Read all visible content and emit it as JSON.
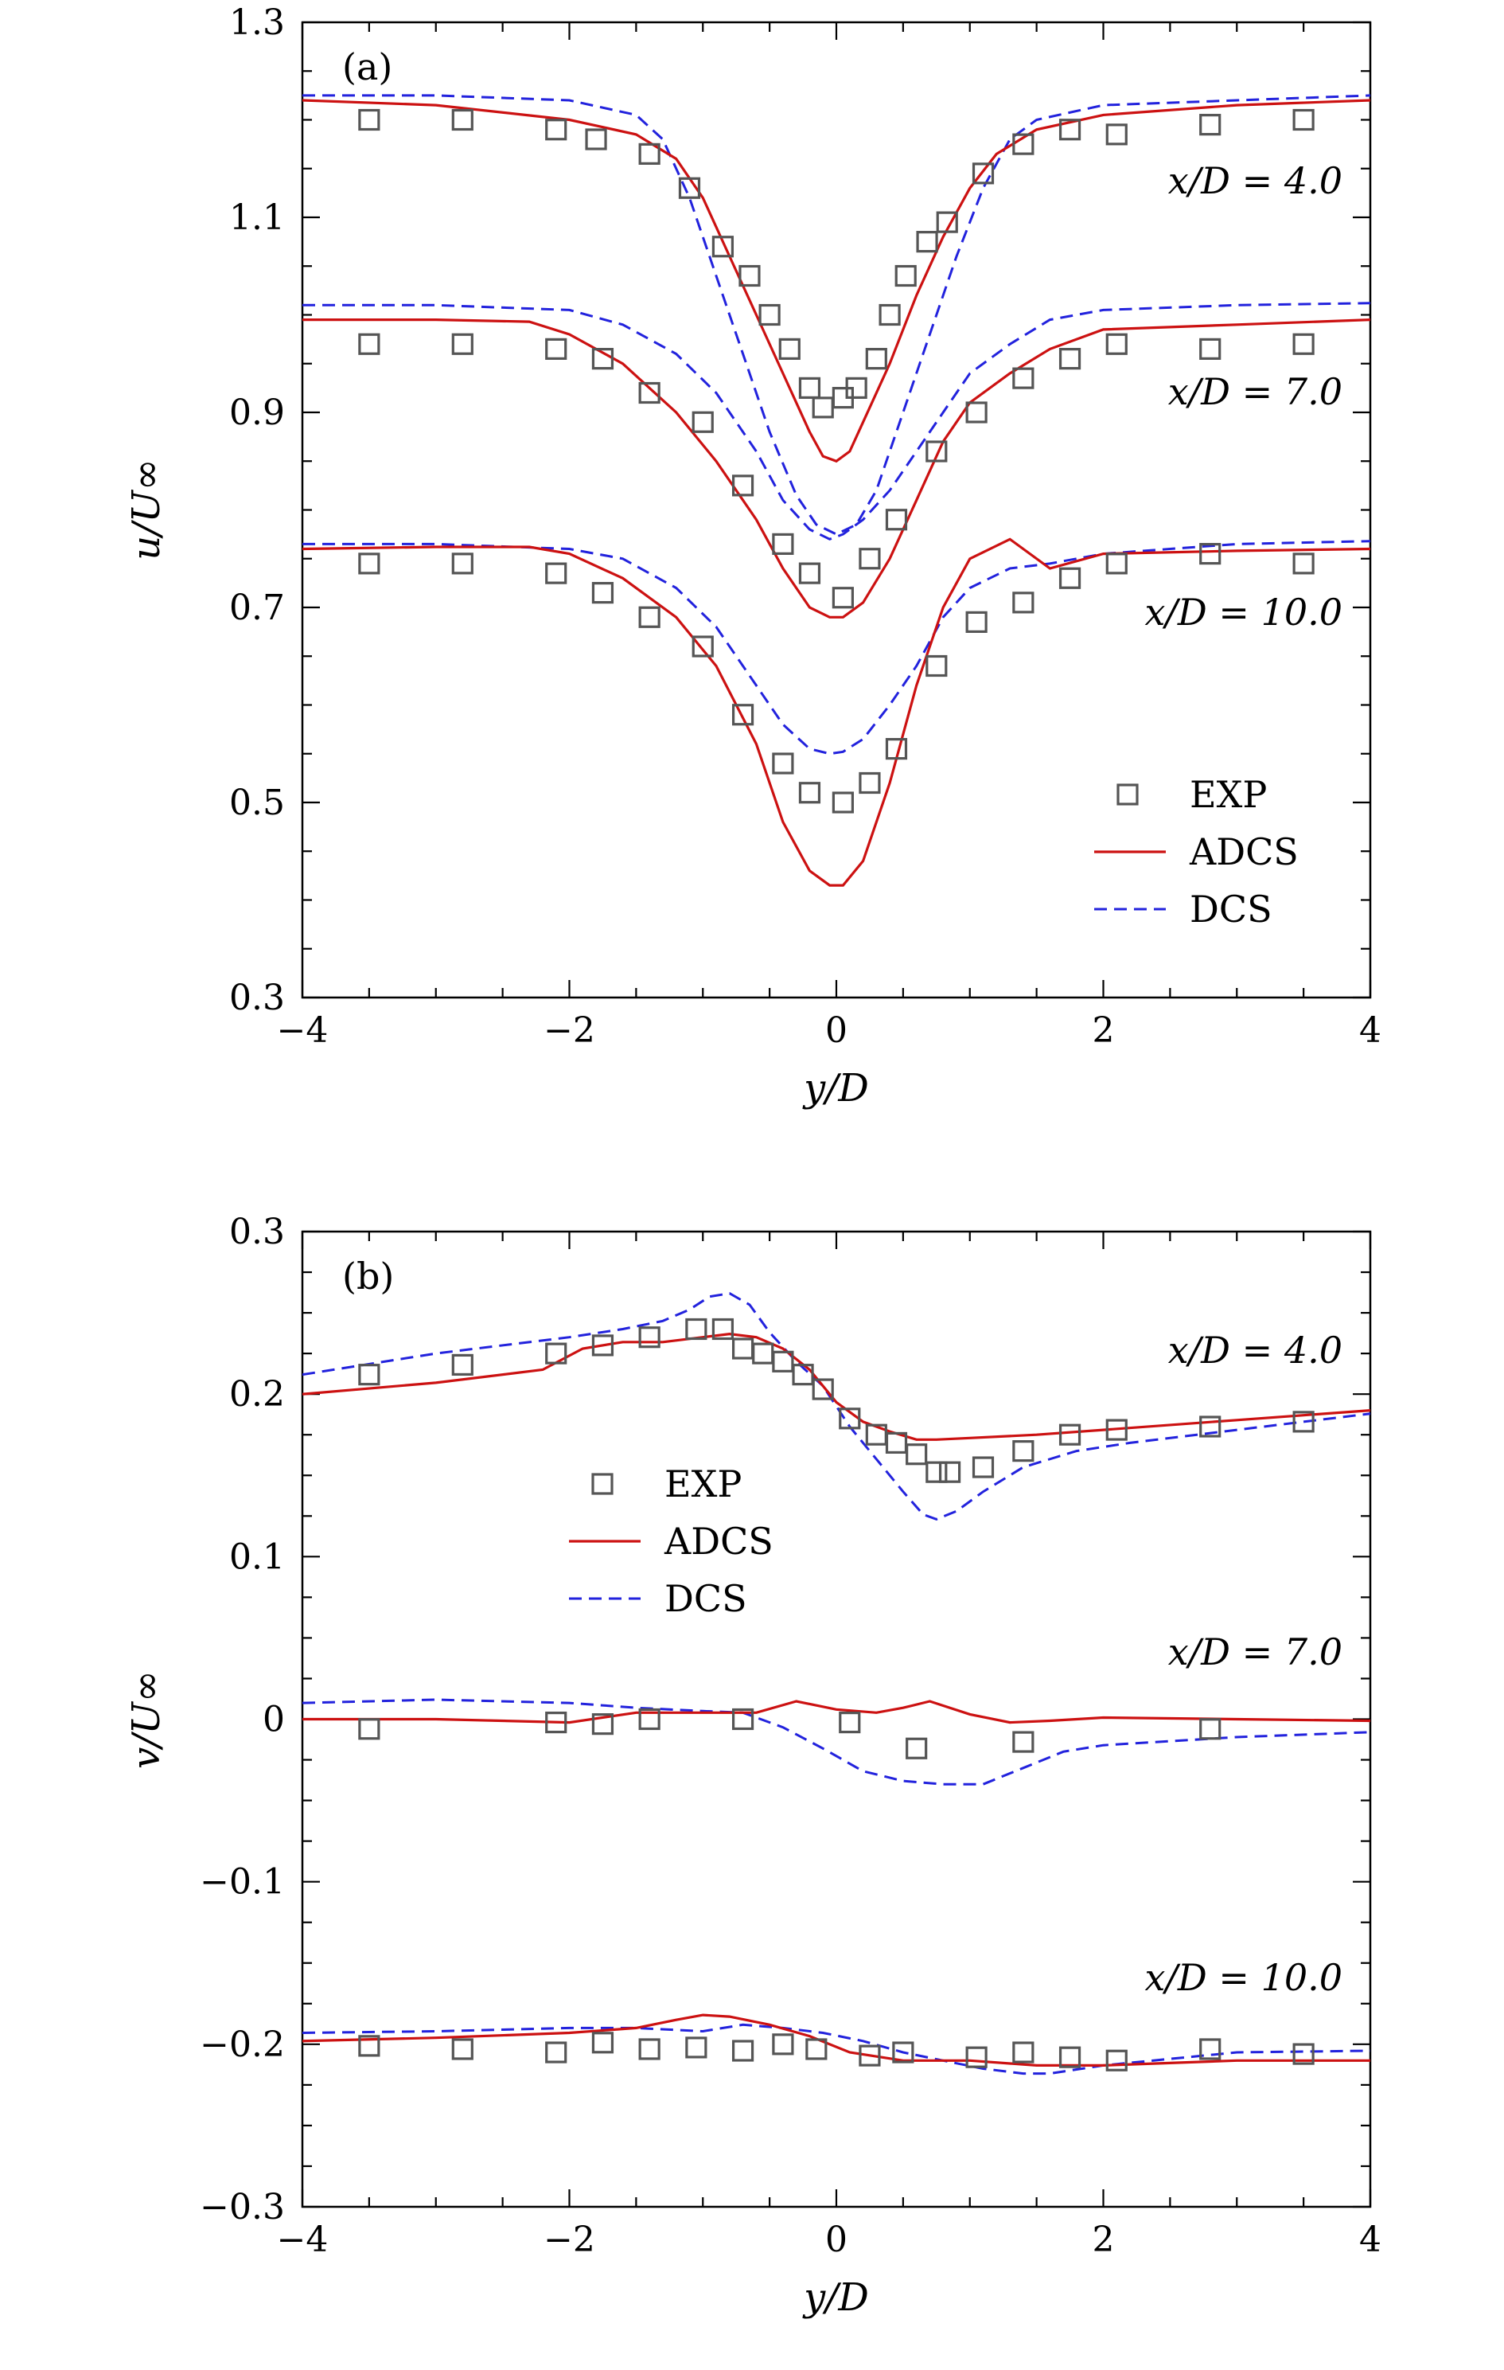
{
  "colors": {
    "exp": "#555555",
    "adcs": "#cc1111",
    "dcs": "#2222dd"
  },
  "chart_data": [
    {
      "type": "line",
      "panel_label": "(a)",
      "xlabel": "y/D",
      "ylabel": "u/U∞",
      "xlim": [
        -4,
        4
      ],
      "ylim": [
        0.3,
        1.3
      ],
      "xticks": [
        -4,
        -2,
        0,
        2,
        4
      ],
      "xtick_labels": [
        "−4",
        "−2",
        "0",
        "2",
        "4"
      ],
      "yticks": [
        0.3,
        0.5,
        0.7,
        0.9,
        1.1,
        1.3
      ],
      "ytick_labels": [
        "0.3",
        "0.5",
        "0.7",
        "0.9",
        "1.1",
        "1.3"
      ],
      "legend": {
        "placement": "lower-right",
        "entries": [
          "EXP",
          "ADCS",
          "DCS"
        ]
      },
      "annotations": [
        {
          "text": "x/D = 4.0",
          "x": 3.65,
          "y": 1.19
        },
        {
          "text": "x/D = 7.0",
          "x": 3.65,
          "y": 0.97
        },
        {
          "text": "x/D = 10.0",
          "x": 3.65,
          "y": 0.74
        }
      ],
      "groups": [
        {
          "label": "x/D = 4.0",
          "exp": {
            "x": [
              -3.5,
              -2.8,
              -2.1,
              -1.8,
              -1.4,
              -1.1,
              -0.85,
              -0.65,
              -0.5,
              -0.35,
              -0.2,
              -0.1,
              0.05,
              0.15,
              0.3,
              0.4,
              0.52,
              0.68,
              0.83,
              1.1,
              1.4,
              1.75,
              2.1,
              2.8,
              3.5
            ],
            "y": [
              1.2,
              1.2,
              1.19,
              1.18,
              1.165,
              1.13,
              1.07,
              1.04,
              1.0,
              0.965,
              0.925,
              0.905,
              0.915,
              0.925,
              0.955,
              1.0,
              1.04,
              1.075,
              1.095,
              1.145,
              1.175,
              1.19,
              1.185,
              1.195,
              1.2
            ]
          },
          "adcs": {
            "x": [
              -4,
              -3,
              -2,
              -1.5,
              -1.2,
              -1.0,
              -0.8,
              -0.6,
              -0.4,
              -0.2,
              -0.1,
              0,
              0.1,
              0.2,
              0.4,
              0.6,
              0.8,
              1.0,
              1.2,
              1.5,
              2,
              3,
              4
            ],
            "y": [
              1.22,
              1.215,
              1.2,
              1.185,
              1.16,
              1.12,
              1.06,
              1.0,
              0.94,
              0.88,
              0.855,
              0.85,
              0.86,
              0.89,
              0.95,
              1.02,
              1.08,
              1.13,
              1.165,
              1.19,
              1.205,
              1.215,
              1.22
            ]
          },
          "dcs": {
            "x": [
              -4,
              -3,
              -2,
              -1.5,
              -1.3,
              -1.1,
              -0.9,
              -0.7,
              -0.5,
              -0.3,
              -0.15,
              0,
              0.15,
              0.3,
              0.5,
              0.7,
              0.9,
              1.1,
              1.3,
              1.5,
              2,
              3,
              4
            ],
            "y": [
              1.225,
              1.225,
              1.22,
              1.205,
              1.18,
              1.12,
              1.04,
              0.96,
              0.88,
              0.815,
              0.785,
              0.775,
              0.785,
              0.82,
              0.9,
              0.98,
              1.06,
              1.13,
              1.18,
              1.2,
              1.215,
              1.22,
              1.225
            ]
          }
        },
        {
          "label": "x/D = 7.0",
          "exp": {
            "x": [
              -3.5,
              -2.8,
              -2.1,
              -1.75,
              -1.4,
              -1.0,
              -0.7,
              -0.4,
              -0.2,
              0.05,
              0.25,
              0.45,
              0.75,
              1.05,
              1.4,
              1.75,
              2.1,
              2.8,
              3.5
            ],
            "y": [
              0.97,
              0.97,
              0.965,
              0.955,
              0.92,
              0.89,
              0.825,
              0.765,
              0.735,
              0.71,
              0.75,
              0.79,
              0.86,
              0.9,
              0.935,
              0.955,
              0.97,
              0.965,
              0.97
            ]
          },
          "adcs": {
            "x": [
              -4,
              -3,
              -2.3,
              -2,
              -1.6,
              -1.2,
              -0.9,
              -0.6,
              -0.4,
              -0.2,
              -0.05,
              0.05,
              0.2,
              0.4,
              0.6,
              0.8,
              1.0,
              1.3,
              1.6,
              2,
              3,
              4
            ],
            "y": [
              0.995,
              0.995,
              0.993,
              0.98,
              0.95,
              0.9,
              0.85,
              0.79,
              0.74,
              0.7,
              0.69,
              0.69,
              0.705,
              0.75,
              0.81,
              0.87,
              0.91,
              0.94,
              0.965,
              0.985,
              0.99,
              0.995
            ]
          },
          "dcs": {
            "x": [
              -4,
              -3,
              -2,
              -1.6,
              -1.2,
              -0.9,
              -0.6,
              -0.4,
              -0.2,
              -0.05,
              0.05,
              0.2,
              0.4,
              0.6,
              0.8,
              1.0,
              1.3,
              1.6,
              2,
              3,
              4
            ],
            "y": [
              1.01,
              1.01,
              1.005,
              0.99,
              0.96,
              0.92,
              0.86,
              0.81,
              0.78,
              0.77,
              0.775,
              0.79,
              0.82,
              0.86,
              0.9,
              0.94,
              0.97,
              0.995,
              1.005,
              1.01,
              1.012
            ]
          }
        },
        {
          "label": "x/D = 10.0",
          "exp": {
            "x": [
              -3.5,
              -2.8,
              -2.1,
              -1.75,
              -1.4,
              -1.0,
              -0.7,
              -0.4,
              -0.2,
              0.05,
              0.25,
              0.45,
              0.75,
              1.05,
              1.4,
              1.75,
              2.1,
              2.8,
              3.5
            ],
            "y": [
              0.745,
              0.745,
              0.735,
              0.715,
              0.69,
              0.66,
              0.59,
              0.54,
              0.51,
              0.5,
              0.52,
              0.555,
              0.64,
              0.685,
              0.705,
              0.73,
              0.745,
              0.755,
              0.745
            ]
          },
          "adcs": {
            "x": [
              -4,
              -3,
              -2.3,
              -2,
              -1.6,
              -1.2,
              -0.9,
              -0.6,
              -0.4,
              -0.2,
              -0.05,
              0.05,
              0.2,
              0.4,
              0.6,
              0.8,
              1.0,
              1.3,
              1.6,
              2,
              3,
              4
            ],
            "y": [
              0.76,
              0.762,
              0.762,
              0.755,
              0.73,
              0.69,
              0.64,
              0.56,
              0.48,
              0.43,
              0.415,
              0.415,
              0.44,
              0.52,
              0.62,
              0.7,
              0.75,
              0.77,
              0.74,
              0.755,
              0.758,
              0.76
            ]
          },
          "dcs": {
            "x": [
              -4,
              -3,
              -2,
              -1.6,
              -1.2,
              -0.9,
              -0.6,
              -0.4,
              -0.2,
              -0.05,
              0.05,
              0.2,
              0.4,
              0.6,
              0.8,
              1.0,
              1.3,
              1.6,
              2,
              3,
              4
            ],
            "y": [
              0.765,
              0.765,
              0.76,
              0.75,
              0.72,
              0.68,
              0.62,
              0.58,
              0.555,
              0.55,
              0.552,
              0.565,
              0.6,
              0.64,
              0.69,
              0.72,
              0.74,
              0.745,
              0.755,
              0.765,
              0.768
            ]
          }
        }
      ]
    },
    {
      "type": "line",
      "panel_label": "(b)",
      "xlabel": "y/D",
      "ylabel": "v/U∞",
      "xlim": [
        -4,
        4
      ],
      "ylim": [
        -0.3,
        0.3
      ],
      "xticks": [
        -4,
        -2,
        0,
        2,
        4
      ],
      "xtick_labels": [
        "−4",
        "−2",
        "0",
        "2",
        "4"
      ],
      "yticks": [
        -0.3,
        -0.2,
        -0.1,
        0,
        0.1,
        0.2,
        0.3
      ],
      "ytick_labels": [
        "−0.3",
        "−0.2",
        "−0.1",
        "0",
        "0.1",
        "0.2",
        "0.3"
      ],
      "legend": {
        "placement": "upper-left-center",
        "entries": [
          "EXP",
          "ADCS",
          "DCS"
        ]
      },
      "annotations": [
        {
          "text": "x/D = 4.0",
          "x": 3.65,
          "y": 0.218
        },
        {
          "text": "x/D = 7.0",
          "x": 3.65,
          "y": 0.032
        },
        {
          "text": "x/D = 10.0",
          "x": 3.65,
          "y": -0.165
        }
      ],
      "groups": [
        {
          "label": "x/D = 4.0",
          "exp": {
            "x": [
              -3.5,
              -2.8,
              -2.1,
              -1.75,
              -1.4,
              -1.05,
              -0.85,
              -0.7,
              -0.55,
              -0.4,
              -0.25,
              -0.1,
              0.1,
              0.3,
              0.45,
              0.6,
              0.75,
              0.85,
              1.1,
              1.4,
              1.75,
              2.1,
              2.8,
              3.5
            ],
            "y": [
              0.212,
              0.218,
              0.225,
              0.23,
              0.235,
              0.24,
              0.24,
              0.228,
              0.225,
              0.22,
              0.212,
              0.203,
              0.185,
              0.175,
              0.17,
              0.163,
              0.152,
              0.152,
              0.155,
              0.165,
              0.175,
              0.178,
              0.18,
              0.183
            ]
          },
          "adcs": {
            "x": [
              -4,
              -3,
              -2.2,
              -1.9,
              -1.6,
              -1.3,
              -1.0,
              -0.8,
              -0.6,
              -0.4,
              -0.2,
              0,
              0.2,
              0.4,
              0.6,
              0.75,
              1.0,
              1.5,
              2,
              3,
              4
            ],
            "y": [
              0.2,
              0.207,
              0.215,
              0.228,
              0.232,
              0.232,
              0.235,
              0.237,
              0.235,
              0.228,
              0.215,
              0.195,
              0.183,
              0.177,
              0.172,
              0.172,
              0.173,
              0.175,
              0.178,
              0.184,
              0.19
            ]
          },
          "dcs": {
            "x": [
              -4,
              -3,
              -2,
              -1.6,
              -1.3,
              -1.1,
              -0.95,
              -0.8,
              -0.65,
              -0.5,
              -0.3,
              -0.1,
              0.1,
              0.3,
              0.5,
              0.65,
              0.75,
              0.9,
              1.1,
              1.4,
              1.8,
              2.2,
              3,
              4
            ],
            "y": [
              0.212,
              0.225,
              0.235,
              0.24,
              0.245,
              0.252,
              0.26,
              0.262,
              0.255,
              0.238,
              0.22,
              0.205,
              0.18,
              0.16,
              0.14,
              0.126,
              0.123,
              0.128,
              0.14,
              0.155,
              0.165,
              0.17,
              0.178,
              0.188
            ]
          }
        },
        {
          "label": "x/D = 7.0",
          "exp": {
            "x": [
              -3.5,
              -2.1,
              -1.75,
              -1.4,
              -0.7,
              0.1,
              0.6,
              1.4,
              2.8
            ],
            "y": [
              -0.006,
              -0.002,
              -0.003,
              0.0,
              0.0,
              -0.002,
              -0.018,
              -0.014,
              -0.006
            ]
          },
          "adcs": {
            "x": [
              -4,
              -3,
              -2,
              -1.5,
              -1.0,
              -0.6,
              -0.3,
              0,
              0.3,
              0.5,
              0.7,
              1.0,
              1.3,
              1.6,
              2,
              3,
              4
            ],
            "y": [
              0.0,
              0.0,
              -0.002,
              0.004,
              0.004,
              0.004,
              0.011,
              0.006,
              0.004,
              0.007,
              0.011,
              0.003,
              -0.002,
              -0.001,
              0.001,
              0.0,
              -0.001
            ]
          },
          "dcs": {
            "x": [
              -4,
              -3,
              -2,
              -1.5,
              -1.0,
              -0.7,
              -0.4,
              -0.1,
              0.2,
              0.5,
              0.8,
              1.1,
              1.4,
              1.7,
              2,
              3,
              4
            ],
            "y": [
              0.01,
              0.012,
              0.01,
              0.007,
              0.005,
              0.004,
              -0.005,
              -0.018,
              -0.032,
              -0.038,
              -0.04,
              -0.04,
              -0.03,
              -0.02,
              -0.016,
              -0.011,
              -0.008
            ]
          }
        },
        {
          "label": "x/D = 10.0",
          "exp": {
            "x": [
              -3.5,
              -2.8,
              -2.1,
              -1.75,
              -1.4,
              -1.05,
              -0.7,
              -0.4,
              -0.15,
              0.25,
              0.5,
              1.05,
              1.4,
              1.75,
              2.1,
              2.8,
              3.5
            ],
            "y": [
              -0.201,
              -0.203,
              -0.205,
              -0.199,
              -0.203,
              -0.202,
              -0.204,
              -0.2,
              -0.203,
              -0.207,
              -0.205,
              -0.208,
              -0.205,
              -0.208,
              -0.21,
              -0.203,
              -0.206
            ]
          },
          "adcs": {
            "x": [
              -4,
              -3,
              -2,
              -1.5,
              -1.2,
              -1.0,
              -0.8,
              -0.5,
              -0.2,
              0.1,
              0.5,
              1.0,
              1.5,
              2,
              3,
              4
            ],
            "y": [
              -0.198,
              -0.196,
              -0.193,
              -0.19,
              -0.185,
              -0.182,
              -0.183,
              -0.188,
              -0.195,
              -0.205,
              -0.21,
              -0.21,
              -0.213,
              -0.213,
              -0.21,
              -0.21
            ]
          },
          "dcs": {
            "x": [
              -4,
              -3,
              -2,
              -1.5,
              -1.0,
              -0.7,
              -0.4,
              -0.1,
              0.2,
              0.5,
              0.8,
              1.1,
              1.4,
              1.6,
              2,
              3,
              4
            ],
            "y": [
              -0.193,
              -0.192,
              -0.19,
              -0.19,
              -0.192,
              -0.188,
              -0.19,
              -0.193,
              -0.198,
              -0.205,
              -0.21,
              -0.215,
              -0.218,
              -0.218,
              -0.213,
              -0.205,
              -0.204
            ]
          }
        }
      ]
    }
  ]
}
